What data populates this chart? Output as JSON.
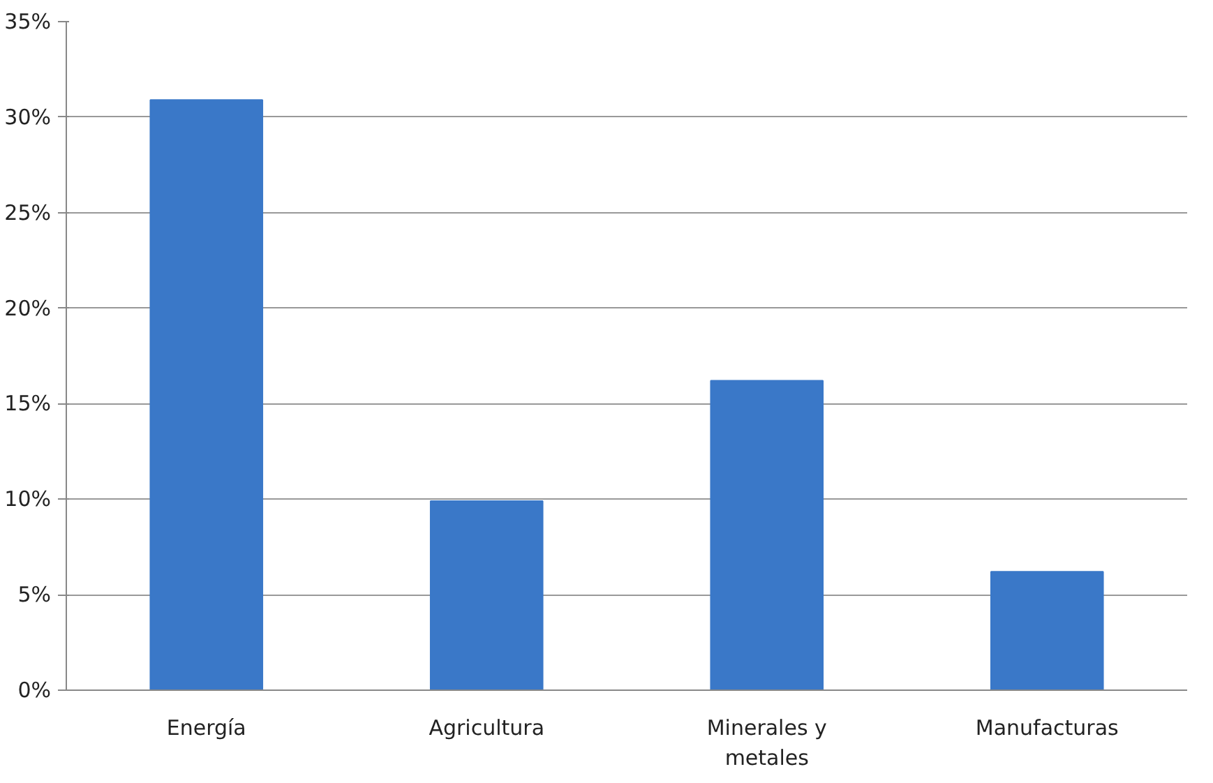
{
  "chart_data": {
    "type": "bar",
    "categories": [
      "Energía",
      "Agricultura",
      "Minerales y metales",
      "Manufacturas"
    ],
    "values": [
      30.9,
      9.9,
      16.2,
      6.2
    ],
    "color": "#3a78c8",
    "ylim": [
      0,
      35
    ],
    "yticks": [
      {
        "value": 0,
        "label": "0%"
      },
      {
        "value": 5,
        "label": "5%"
      },
      {
        "value": 10,
        "label": "10%"
      },
      {
        "value": 15,
        "label": "15%"
      },
      {
        "value": 20,
        "label": "20%"
      },
      {
        "value": 25,
        "label": "25%"
      },
      {
        "value": 30,
        "label": "30%"
      },
      {
        "value": 35,
        "label": "35%"
      }
    ],
    "grid": "y"
  }
}
